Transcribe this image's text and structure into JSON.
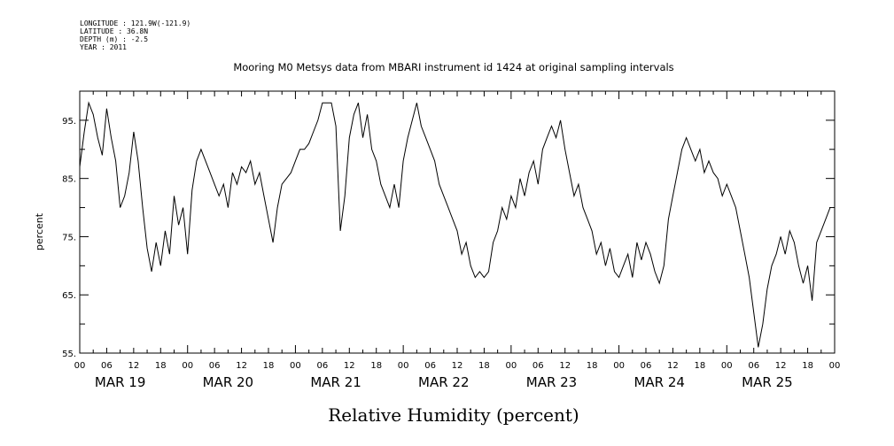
{
  "meta": {
    "longitude": "LONGITUDE : 121.9W(-121.9)",
    "latitude": "LATITUDE : 36.8N",
    "depth": "DEPTH (m) : -2.5",
    "year": "YEAR : 2011"
  },
  "chart_data": {
    "type": "line",
    "title": "Mooring M0 Metsys data from MBARI instrument id 1424 at original sampling intervals",
    "xlabel": "Relative Humidity (percent)",
    "ylabel": "percent",
    "ylim": [
      55,
      100
    ],
    "yticks": [
      55,
      65,
      75,
      85,
      95
    ],
    "ytick_labels": [
      "55.",
      "65.",
      "75.",
      "85.",
      "95."
    ],
    "xlim": [
      "2011-03-19 00:00",
      "2011-03-26 00:00"
    ],
    "hour_tick_labels": [
      "00",
      "06",
      "12",
      "18",
      "00",
      "06",
      "12",
      "18",
      "00",
      "06",
      "12",
      "18",
      "00",
      "06",
      "12",
      "18",
      "00",
      "06",
      "12",
      "18",
      "00",
      "06",
      "12",
      "18",
      "00",
      "06",
      "12",
      "18",
      "00"
    ],
    "day_labels": [
      "MAR 19",
      "MAR 20",
      "MAR 21",
      "MAR 22",
      "MAR 23",
      "MAR 24",
      "MAR 25"
    ],
    "grid": false,
    "series": [
      {
        "color": "#000000",
        "points": [
          [
            "2011-03-19 00:00",
            87
          ],
          [
            "2011-03-19 01:00",
            93
          ],
          [
            "2011-03-19 02:00",
            98
          ],
          [
            "2011-03-19 03:00",
            96
          ],
          [
            "2011-03-19 04:00",
            92
          ],
          [
            "2011-03-19 05:00",
            89
          ],
          [
            "2011-03-19 06:00",
            97
          ],
          [
            "2011-03-19 07:00",
            92
          ],
          [
            "2011-03-19 08:00",
            88
          ],
          [
            "2011-03-19 09:00",
            80
          ],
          [
            "2011-03-19 10:00",
            82
          ],
          [
            "2011-03-19 11:00",
            86
          ],
          [
            "2011-03-19 12:00",
            93
          ],
          [
            "2011-03-19 13:00",
            88
          ],
          [
            "2011-03-19 14:00",
            80
          ],
          [
            "2011-03-19 15:00",
            73
          ],
          [
            "2011-03-19 16:00",
            69
          ],
          [
            "2011-03-19 17:00",
            74
          ],
          [
            "2011-03-19 18:00",
            70
          ],
          [
            "2011-03-19 19:00",
            76
          ],
          [
            "2011-03-19 20:00",
            72
          ],
          [
            "2011-03-19 21:00",
            82
          ],
          [
            "2011-03-19 22:00",
            77
          ],
          [
            "2011-03-19 23:00",
            80
          ],
          [
            "2011-03-20 00:00",
            72
          ],
          [
            "2011-03-20 01:00",
            83
          ],
          [
            "2011-03-20 02:00",
            88
          ],
          [
            "2011-03-20 03:00",
            90
          ],
          [
            "2011-03-20 04:00",
            88
          ],
          [
            "2011-03-20 05:00",
            86
          ],
          [
            "2011-03-20 06:00",
            84
          ],
          [
            "2011-03-20 07:00",
            82
          ],
          [
            "2011-03-20 08:00",
            84
          ],
          [
            "2011-03-20 09:00",
            80
          ],
          [
            "2011-03-20 10:00",
            86
          ],
          [
            "2011-03-20 11:00",
            84
          ],
          [
            "2011-03-20 12:00",
            87
          ],
          [
            "2011-03-20 13:00",
            86
          ],
          [
            "2011-03-20 14:00",
            88
          ],
          [
            "2011-03-20 15:00",
            84
          ],
          [
            "2011-03-20 16:00",
            86
          ],
          [
            "2011-03-20 17:00",
            82
          ],
          [
            "2011-03-20 18:00",
            78
          ],
          [
            "2011-03-20 19:00",
            74
          ],
          [
            "2011-03-20 20:00",
            80
          ],
          [
            "2011-03-20 21:00",
            84
          ],
          [
            "2011-03-20 22:00",
            85
          ],
          [
            "2011-03-20 23:00",
            86
          ],
          [
            "2011-03-21 00:00",
            88
          ],
          [
            "2011-03-21 01:00",
            90
          ],
          [
            "2011-03-21 02:00",
            90
          ],
          [
            "2011-03-21 03:00",
            91
          ],
          [
            "2011-03-21 04:00",
            93
          ],
          [
            "2011-03-21 05:00",
            95
          ],
          [
            "2011-03-21 06:00",
            98
          ],
          [
            "2011-03-21 07:00",
            98
          ],
          [
            "2011-03-21 08:00",
            98
          ],
          [
            "2011-03-21 09:00",
            94
          ],
          [
            "2011-03-21 10:00",
            76
          ],
          [
            "2011-03-21 11:00",
            82
          ],
          [
            "2011-03-21 12:00",
            92
          ],
          [
            "2011-03-21 13:00",
            96
          ],
          [
            "2011-03-21 14:00",
            98
          ],
          [
            "2011-03-21 15:00",
            92
          ],
          [
            "2011-03-21 16:00",
            96
          ],
          [
            "2011-03-21 17:00",
            90
          ],
          [
            "2011-03-21 18:00",
            88
          ],
          [
            "2011-03-21 19:00",
            84
          ],
          [
            "2011-03-21 20:00",
            82
          ],
          [
            "2011-03-21 21:00",
            80
          ],
          [
            "2011-03-21 22:00",
            84
          ],
          [
            "2011-03-21 23:00",
            80
          ],
          [
            "2011-03-22 00:00",
            88
          ],
          [
            "2011-03-22 01:00",
            92
          ],
          [
            "2011-03-22 02:00",
            95
          ],
          [
            "2011-03-22 03:00",
            98
          ],
          [
            "2011-03-22 04:00",
            94
          ],
          [
            "2011-03-22 05:00",
            92
          ],
          [
            "2011-03-22 06:00",
            90
          ],
          [
            "2011-03-22 07:00",
            88
          ],
          [
            "2011-03-22 08:00",
            84
          ],
          [
            "2011-03-22 09:00",
            82
          ],
          [
            "2011-03-22 10:00",
            80
          ],
          [
            "2011-03-22 11:00",
            78
          ],
          [
            "2011-03-22 12:00",
            76
          ],
          [
            "2011-03-22 13:00",
            72
          ],
          [
            "2011-03-22 14:00",
            74
          ],
          [
            "2011-03-22 15:00",
            70
          ],
          [
            "2011-03-22 16:00",
            68
          ],
          [
            "2011-03-22 17:00",
            69
          ],
          [
            "2011-03-22 18:00",
            68
          ],
          [
            "2011-03-22 19:00",
            69
          ],
          [
            "2011-03-22 20:00",
            74
          ],
          [
            "2011-03-22 21:00",
            76
          ],
          [
            "2011-03-22 22:00",
            80
          ],
          [
            "2011-03-22 23:00",
            78
          ],
          [
            "2011-03-23 00:00",
            82
          ],
          [
            "2011-03-23 01:00",
            80
          ],
          [
            "2011-03-23 02:00",
            85
          ],
          [
            "2011-03-23 03:00",
            82
          ],
          [
            "2011-03-23 04:00",
            86
          ],
          [
            "2011-03-23 05:00",
            88
          ],
          [
            "2011-03-23 06:00",
            84
          ],
          [
            "2011-03-23 07:00",
            90
          ],
          [
            "2011-03-23 08:00",
            92
          ],
          [
            "2011-03-23 09:00",
            94
          ],
          [
            "2011-03-23 10:00",
            92
          ],
          [
            "2011-03-23 11:00",
            95
          ],
          [
            "2011-03-23 12:00",
            90
          ],
          [
            "2011-03-23 13:00",
            86
          ],
          [
            "2011-03-23 14:00",
            82
          ],
          [
            "2011-03-23 15:00",
            84
          ],
          [
            "2011-03-23 16:00",
            80
          ],
          [
            "2011-03-23 17:00",
            78
          ],
          [
            "2011-03-23 18:00",
            76
          ],
          [
            "2011-03-23 19:00",
            72
          ],
          [
            "2011-03-23 20:00",
            74
          ],
          [
            "2011-03-23 21:00",
            70
          ],
          [
            "2011-03-23 22:00",
            73
          ],
          [
            "2011-03-23 23:00",
            69
          ],
          [
            "2011-03-24 00:00",
            68
          ],
          [
            "2011-03-24 01:00",
            70
          ],
          [
            "2011-03-24 02:00",
            72
          ],
          [
            "2011-03-24 03:00",
            68
          ],
          [
            "2011-03-24 04:00",
            74
          ],
          [
            "2011-03-24 05:00",
            71
          ],
          [
            "2011-03-24 06:00",
            74
          ],
          [
            "2011-03-24 07:00",
            72
          ],
          [
            "2011-03-24 08:00",
            69
          ],
          [
            "2011-03-24 09:00",
            67
          ],
          [
            "2011-03-24 10:00",
            70
          ],
          [
            "2011-03-24 11:00",
            78
          ],
          [
            "2011-03-24 12:00",
            82
          ],
          [
            "2011-03-24 13:00",
            86
          ],
          [
            "2011-03-24 14:00",
            90
          ],
          [
            "2011-03-24 15:00",
            92
          ],
          [
            "2011-03-24 16:00",
            90
          ],
          [
            "2011-03-24 17:00",
            88
          ],
          [
            "2011-03-24 18:00",
            90
          ],
          [
            "2011-03-24 19:00",
            86
          ],
          [
            "2011-03-24 20:00",
            88
          ],
          [
            "2011-03-24 21:00",
            86
          ],
          [
            "2011-03-24 22:00",
            85
          ],
          [
            "2011-03-24 23:00",
            82
          ],
          [
            "2011-03-25 00:00",
            84
          ],
          [
            "2011-03-25 01:00",
            82
          ],
          [
            "2011-03-25 02:00",
            80
          ],
          [
            "2011-03-25 03:00",
            76
          ],
          [
            "2011-03-25 04:00",
            72
          ],
          [
            "2011-03-25 05:00",
            68
          ],
          [
            "2011-03-25 06:00",
            62
          ],
          [
            "2011-03-25 07:00",
            56
          ],
          [
            "2011-03-25 08:00",
            60
          ],
          [
            "2011-03-25 09:00",
            66
          ],
          [
            "2011-03-25 10:00",
            70
          ],
          [
            "2011-03-25 11:00",
            72
          ],
          [
            "2011-03-25 12:00",
            75
          ],
          [
            "2011-03-25 13:00",
            72
          ],
          [
            "2011-03-25 14:00",
            76
          ],
          [
            "2011-03-25 15:00",
            74
          ],
          [
            "2011-03-25 16:00",
            70
          ],
          [
            "2011-03-25 17:00",
            67
          ],
          [
            "2011-03-25 18:00",
            70
          ],
          [
            "2011-03-25 19:00",
            64
          ],
          [
            "2011-03-25 20:00",
            74
          ],
          [
            "2011-03-25 21:00",
            76
          ],
          [
            "2011-03-25 22:00",
            78
          ],
          [
            "2011-03-25 23:00",
            80
          ]
        ]
      }
    ]
  }
}
